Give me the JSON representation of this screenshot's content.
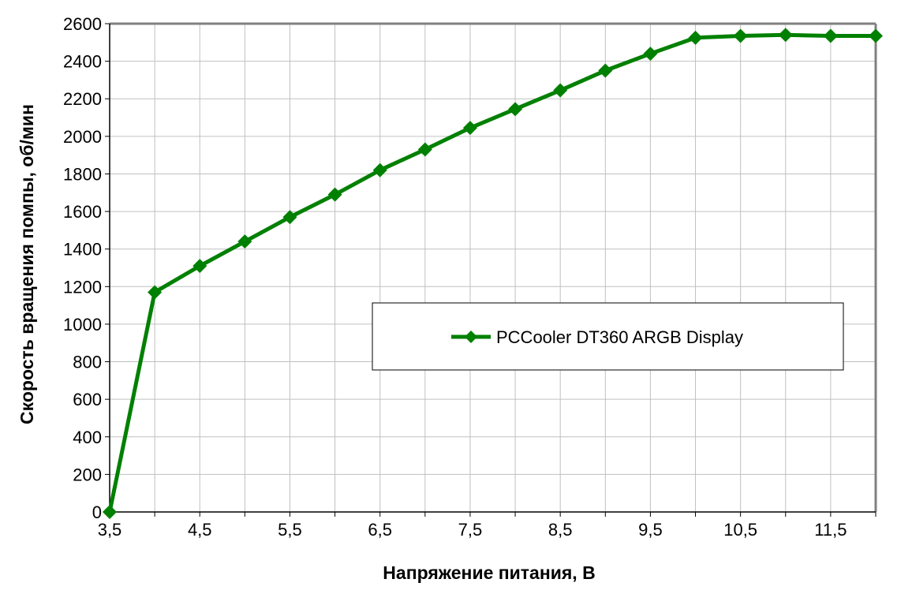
{
  "chart_data": {
    "type": "line",
    "title": "",
    "xlabel": "Напряжение питания, В",
    "ylabel": "Скорость вращения помпы, об/мин",
    "xlim": [
      3.5,
      12
    ],
    "ylim": [
      0,
      2600
    ],
    "x_ticks": [
      "3,5",
      "4,5",
      "5,5",
      "6,5",
      "7,5",
      "8,5",
      "9,5",
      "10,5",
      "11,5"
    ],
    "x_tick_values": [
      3.5,
      4.5,
      5.5,
      6.5,
      7.5,
      8.5,
      9.5,
      10.5,
      11.5
    ],
    "y_ticks": [
      0,
      200,
      400,
      600,
      800,
      1000,
      1200,
      1400,
      1600,
      1800,
      2000,
      2200,
      2400,
      2600
    ],
    "grid": true,
    "legend_position": "center-right",
    "series": [
      {
        "name": "PCCooler DT360 ARGB Display",
        "color": "#008000",
        "marker": "diamond",
        "x": [
          3.5,
          4,
          4.5,
          5,
          5.5,
          6,
          6.5,
          7,
          7.5,
          8,
          8.5,
          9,
          9.5,
          10,
          10.5,
          11,
          11.5,
          12
        ],
        "y": [
          0,
          1170,
          1310,
          1440,
          1570,
          1690,
          1820,
          1930,
          2045,
          2145,
          2245,
          2350,
          2440,
          2525,
          2535,
          2540,
          2535,
          2535
        ]
      }
    ]
  }
}
